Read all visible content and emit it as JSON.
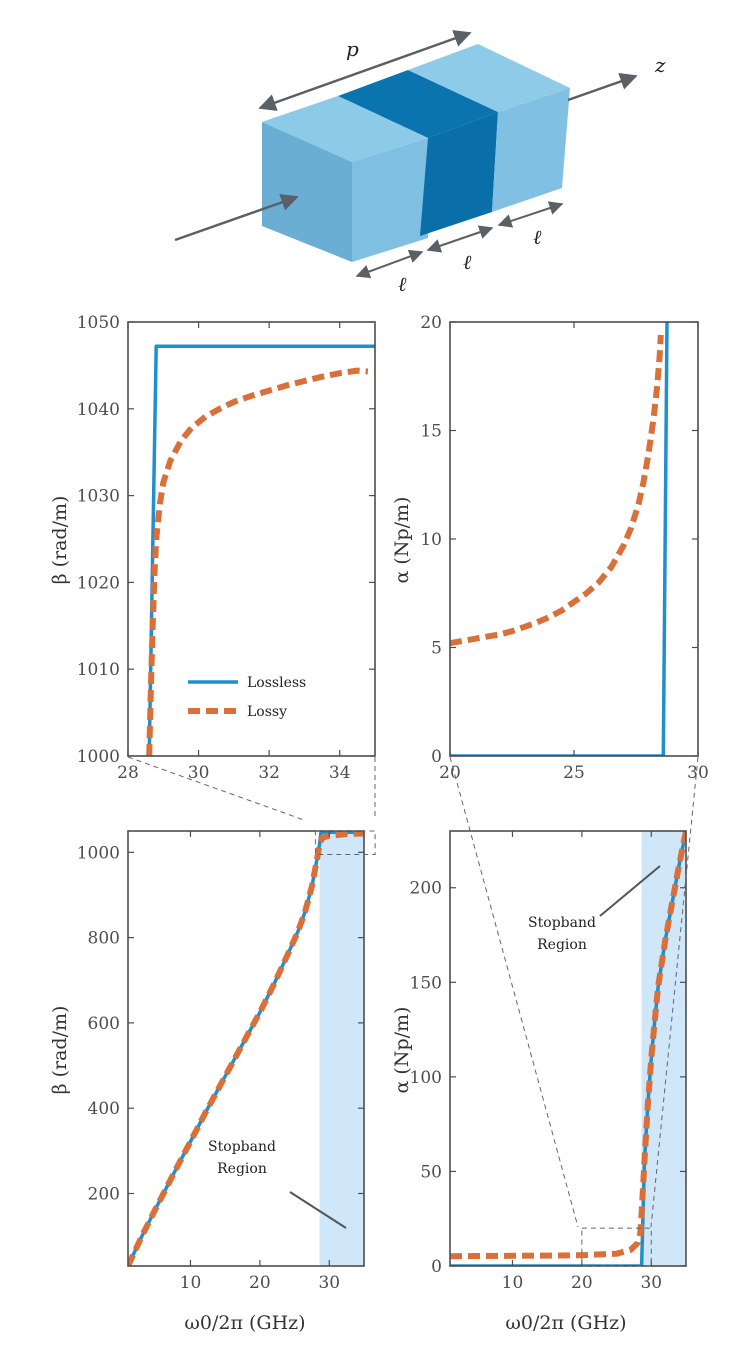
{
  "colors": {
    "lossless": "#1f8fcf",
    "lossy": "#d9703a",
    "axis": "#4d4d4d",
    "stopband_fill": "#cfe7f8",
    "block_light": "#7fbfe0",
    "block_dark": "#0a6fa8",
    "arrow": "#5a6066"
  },
  "diagram": {
    "period_label": "p",
    "axis_label": "z",
    "segment_labels": [
      "ℓ",
      "ℓ",
      "ℓ"
    ]
  },
  "panels": {
    "a": {
      "ylabel": "β (rad/m)",
      "xlabel": "",
      "legend": [
        "Lossless",
        "Lossy"
      ]
    },
    "b": {
      "ylabel": "α (Np/m)",
      "xlabel": ""
    },
    "c": {
      "ylabel": "β (rad/m)",
      "xlabel": "ω0/2π (GHz)",
      "annotation": [
        "Stopband",
        "Region"
      ]
    },
    "d": {
      "ylabel": "α (Np/m)",
      "xlabel": "ω0/2π (GHz)",
      "annotation": [
        "Stopband",
        "Region"
      ]
    }
  },
  "chart_data": [
    {
      "id": "a",
      "type": "line",
      "xlim": [
        28,
        35
      ],
      "ylim": [
        1000,
        1050
      ],
      "xticks": [
        28,
        30,
        32,
        34
      ],
      "yticks": [
        1000,
        1010,
        1020,
        1030,
        1040,
        1050
      ],
      "legend_position": "bottom-center",
      "series": [
        {
          "name": "Lossless",
          "style": "solid",
          "x": [
            28.6,
            28.8,
            28.8,
            35
          ],
          "y": [
            1000,
            1047.2,
            1047.2,
            1047.2
          ]
        },
        {
          "name": "Lossy",
          "style": "dashed",
          "x": [
            28.6,
            28.65,
            28.7,
            28.75,
            28.8,
            28.9,
            29.0,
            29.2,
            29.5,
            29.8,
            30.2,
            30.6,
            31.0,
            31.5,
            32.0,
            32.5,
            33.0,
            33.5,
            34.0,
            34.5,
            34.8
          ],
          "y": [
            1000,
            1008,
            1015,
            1021,
            1025,
            1029,
            1031.5,
            1034,
            1036.3,
            1037.8,
            1039.1,
            1040,
            1040.8,
            1041.5,
            1042.1,
            1042.7,
            1043.2,
            1043.7,
            1044.1,
            1044.4,
            1044.3
          ]
        }
      ]
    },
    {
      "id": "b",
      "type": "line",
      "xlim": [
        20,
        30
      ],
      "ylim": [
        0,
        20
      ],
      "xticks": [
        20,
        25,
        30
      ],
      "yticks": [
        0,
        5,
        10,
        15,
        20
      ],
      "series": [
        {
          "name": "Lossless",
          "style": "solid",
          "x": [
            20,
            28.6,
            28.6,
            28.75
          ],
          "y": [
            0,
            0,
            0,
            20
          ]
        },
        {
          "name": "Lossy",
          "style": "dashed",
          "x": [
            20,
            20.5,
            21,
            21.5,
            22,
            22.5,
            23,
            23.5,
            24,
            24.5,
            25,
            25.5,
            26,
            26.5,
            27,
            27.3,
            27.6,
            27.8,
            28.0,
            28.2,
            28.35,
            28.45,
            28.5
          ],
          "y": [
            5.2,
            5.3,
            5.4,
            5.5,
            5.6,
            5.75,
            5.95,
            6.15,
            6.4,
            6.7,
            7.1,
            7.5,
            8.0,
            8.7,
            9.7,
            10.5,
            11.6,
            12.6,
            13.9,
            15.5,
            17.0,
            18.4,
            19.4
          ]
        }
      ]
    },
    {
      "id": "c",
      "type": "line",
      "xlim": [
        1,
        35
      ],
      "ylim": [
        30,
        1050
      ],
      "xticks": [
        10,
        20,
        30
      ],
      "yticks": [
        200,
        400,
        600,
        800,
        1000
      ],
      "stopband": [
        28.6,
        35
      ],
      "series": [
        {
          "name": "Lossless",
          "style": "solid",
          "x": [
            1,
            3,
            5,
            8,
            10,
            12,
            15,
            18,
            20,
            22,
            24,
            25.5,
            26.5,
            27.5,
            28.3,
            28.6,
            28.8,
            35
          ],
          "y": [
            30,
            100,
            165,
            260,
            322,
            385,
            475,
            565,
            625,
            690,
            760,
            815,
            860,
            920,
            990,
            1020,
            1047,
            1047
          ]
        },
        {
          "name": "Lossy",
          "style": "dashed",
          "x": [
            1,
            3,
            5,
            8,
            10,
            12,
            15,
            18,
            20,
            22,
            24,
            25.5,
            26.5,
            27.5,
            28.3,
            28.6,
            29,
            30,
            32,
            34,
            35
          ],
          "y": [
            30,
            100,
            165,
            260,
            322,
            385,
            475,
            565,
            625,
            690,
            760,
            815,
            860,
            920,
            990,
            1020,
            1034,
            1039,
            1042,
            1044,
            1044
          ]
        }
      ]
    },
    {
      "id": "d",
      "type": "line",
      "xlim": [
        1,
        35
      ],
      "ylim": [
        0,
        230
      ],
      "xticks": [
        10,
        20,
        30
      ],
      "yticks": [
        0,
        50,
        100,
        150,
        200
      ],
      "stopband": [
        28.6,
        35
      ],
      "series": [
        {
          "name": "Lossless",
          "style": "solid",
          "x": [
            1,
            28.6,
            29,
            29.5,
            30,
            30.5,
            31,
            32,
            33,
            34,
            35
          ],
          "y": [
            0,
            0,
            55,
            85,
            110,
            130,
            148,
            172,
            192,
            212,
            230
          ]
        },
        {
          "name": "Lossy",
          "style": "dashed",
          "x": [
            1,
            5,
            10,
            15,
            20,
            25,
            27,
            28,
            28.4,
            28.6,
            29,
            29.5,
            30,
            30.5,
            31,
            32,
            33,
            34,
            35
          ],
          "y": [
            5.2,
            5.3,
            5.4,
            5.5,
            5.7,
            6.5,
            8.5,
            12,
            17,
            28,
            55,
            85,
            110,
            130,
            148,
            172,
            192,
            212,
            230
          ]
        }
      ]
    }
  ]
}
